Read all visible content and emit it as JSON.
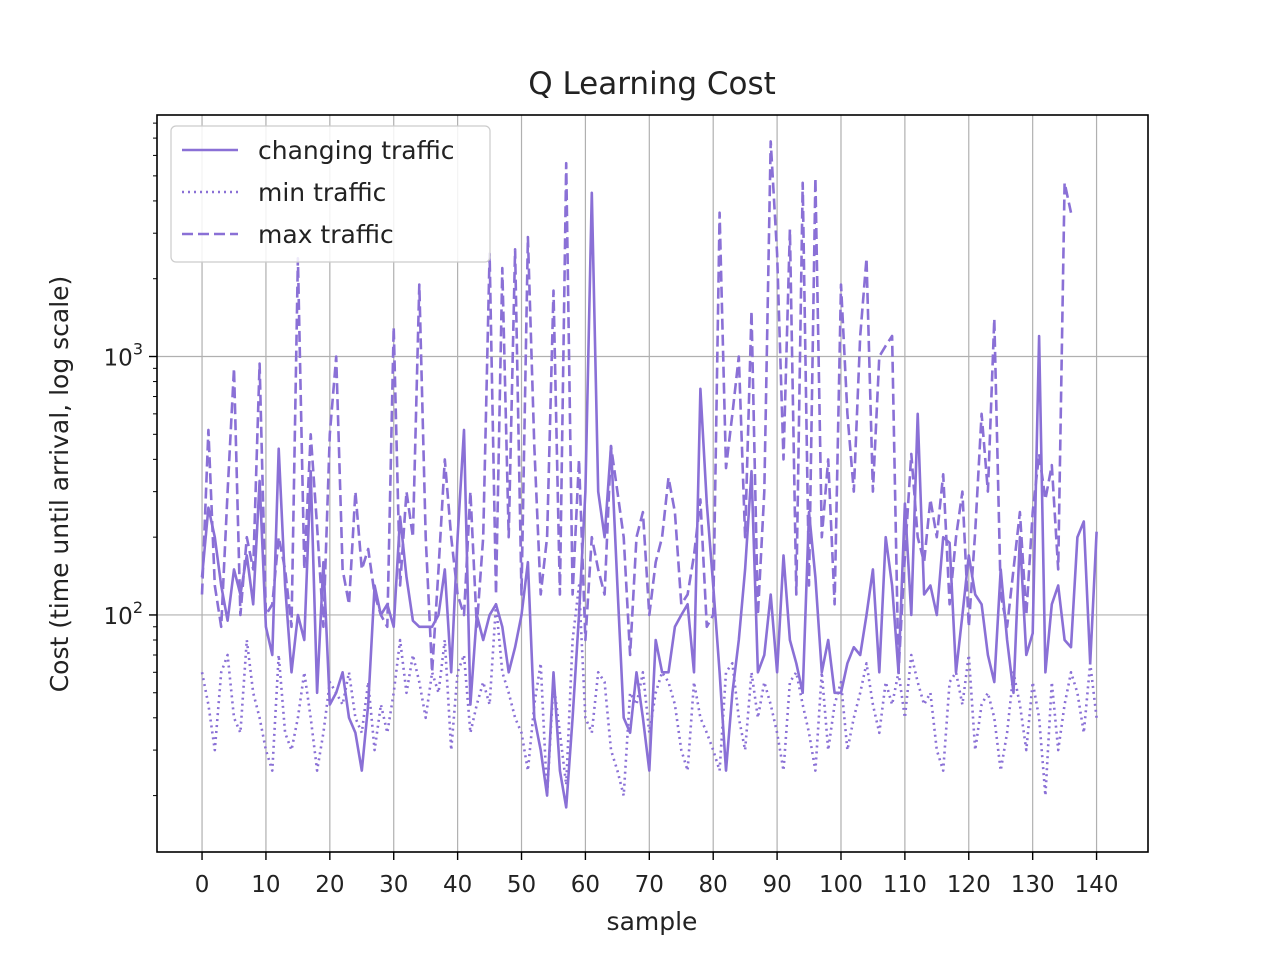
{
  "chart_data": {
    "type": "line",
    "title": "Q Learning Cost",
    "xlabel": "sample",
    "ylabel": "Cost (time until arrival, log scale)",
    "yscale": "log",
    "grid": true,
    "legend_position": "upper-left",
    "xlim": [
      -7.05,
      148.05
    ],
    "ylim": [
      12.1,
      8600
    ],
    "xticks": [
      0,
      10,
      20,
      30,
      40,
      50,
      60,
      70,
      80,
      90,
      100,
      110,
      120,
      130,
      140
    ],
    "xtick_labels": [
      "0",
      "10",
      "20",
      "30",
      "40",
      "50",
      "60",
      "70",
      "80",
      "90",
      "100",
      "110",
      "120",
      "130",
      "140"
    ],
    "yticks_major": [
      {
        "value": 100,
        "base": "10",
        "exp": "2"
      },
      {
        "value": 1000,
        "base": "10",
        "exp": "3"
      }
    ],
    "series": [
      {
        "name": "changing traffic",
        "style": "solid",
        "color": "#8a70d6",
        "values": [
          140,
          260,
          200,
          130,
          95,
          150,
          120,
          170,
          110,
          330,
          90,
          70,
          440,
          130,
          60,
          100,
          80,
          360,
          50,
          160,
          45,
          50,
          60,
          40,
          35,
          25,
          45,
          130,
          100,
          110,
          90,
          240,
          140,
          95,
          90,
          90,
          90,
          100,
          150,
          60,
          200,
          520,
          45,
          100,
          80,
          100,
          110,
          90,
          60,
          75,
          100,
          160,
          40,
          30,
          20,
          60,
          25,
          18,
          40,
          100,
          300,
          4300,
          300,
          200,
          450,
          130,
          40,
          35,
          60,
          40,
          25,
          80,
          60,
          60,
          90,
          100,
          110,
          60,
          750,
          270,
          130,
          60,
          25,
          50,
          80,
          150,
          360,
          60,
          70,
          120,
          60,
          170,
          80,
          65,
          50,
          250,
          140,
          60,
          80,
          50,
          50,
          65,
          75,
          70,
          100,
          150,
          60,
          200,
          130,
          60,
          270,
          100,
          600,
          120,
          130,
          100,
          200,
          190,
          60,
          100,
          170,
          120,
          110,
          70,
          55,
          150,
          80,
          50,
          200,
          70,
          85,
          1200,
          60,
          110,
          130,
          80,
          75,
          200,
          230,
          65,
          210
        ]
      },
      {
        "name": "min traffic",
        "style": "dotted",
        "color": "#8a70d6",
        "values": [
          60,
          45,
          30,
          60,
          70,
          40,
          35,
          80,
          50,
          40,
          30,
          25,
          70,
          35,
          30,
          40,
          60,
          40,
          25,
          35,
          55,
          50,
          45,
          60,
          40,
          35,
          55,
          30,
          45,
          35,
          50,
          80,
          50,
          70,
          55,
          40,
          60,
          50,
          80,
          30,
          60,
          70,
          35,
          45,
          55,
          45,
          110,
          60,
          50,
          40,
          35,
          25,
          45,
          65,
          20,
          55,
          35,
          22,
          80,
          130,
          40,
          35,
          60,
          55,
          30,
          25,
          20,
          50,
          45,
          60,
          35,
          50,
          60,
          55,
          45,
          30,
          25,
          55,
          40,
          35,
          30,
          25,
          60,
          65,
          40,
          30,
          60,
          40,
          55,
          45,
          35,
          25,
          55,
          60,
          45,
          35,
          25,
          60,
          30,
          45,
          55,
          30,
          40,
          50,
          65,
          45,
          35,
          55,
          45,
          60,
          40,
          70,
          55,
          45,
          50,
          30,
          25,
          55,
          60,
          45,
          70,
          30,
          45,
          50,
          40,
          25,
          35,
          60,
          45,
          30,
          55,
          40,
          20,
          55,
          30,
          45,
          60,
          50,
          35,
          65,
          40
        ]
      },
      {
        "name": "max traffic",
        "style": "dashed",
        "color": "#8a70d6",
        "values": [
          120,
          520,
          130,
          90,
          300,
          900,
          100,
          200,
          150,
          940,
          100,
          110,
          200,
          150,
          90,
          2400,
          150,
          500,
          220,
          90,
          500,
          1000,
          150,
          110,
          300,
          150,
          180,
          120,
          100,
          90,
          1300,
          130,
          300,
          200,
          1900,
          200,
          60,
          150,
          400,
          200,
          120,
          100,
          300,
          90,
          200,
          2500,
          120,
          2200,
          200,
          2600,
          120,
          2900,
          450,
          120,
          200,
          1800,
          120,
          5600,
          120,
          400,
          80,
          200,
          150,
          120,
          450,
          300,
          200,
          70,
          200,
          250,
          100,
          160,
          200,
          340,
          250,
          110,
          120,
          170,
          280,
          90,
          100,
          3600,
          370,
          600,
          1000,
          200,
          1500,
          100,
          300,
          6800,
          2500,
          400,
          3100,
          120,
          4700,
          130,
          4900,
          200,
          400,
          110,
          1900,
          600,
          300,
          1200,
          2400,
          300,
          1000,
          1100,
          1200,
          60,
          170,
          420,
          200,
          160,
          280,
          200,
          350,
          110,
          200,
          300,
          90,
          210,
          600,
          300,
          1400,
          120,
          90,
          150,
          250,
          100,
          250,
          420,
          280,
          380,
          150,
          4700,
          3600
        ]
      }
    ]
  }
}
